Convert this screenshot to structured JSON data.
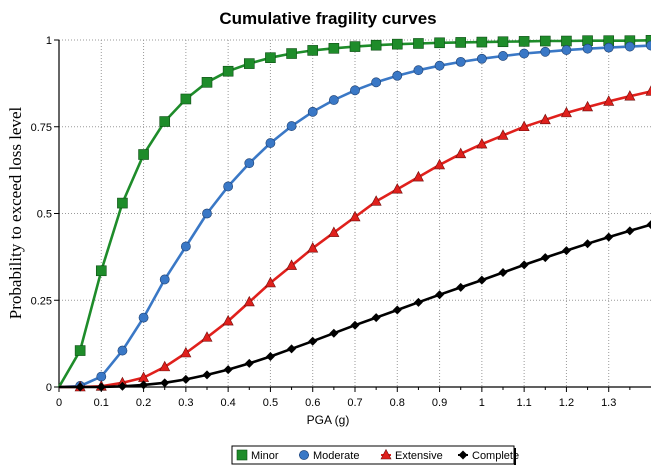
{
  "chart_data": {
    "type": "line",
    "title": "Cumulative fragility curves",
    "xlabel": "PGA (g)",
    "ylabel": "Probability to exceed loss level",
    "xlim": [
      0,
      1.4
    ],
    "ylim": [
      0,
      1
    ],
    "x_ticks": [
      "0",
      "0.1",
      "0.2",
      "0.3",
      "0.4",
      "0.5",
      "0.6",
      "0.7",
      "0.8",
      "0.9",
      "1",
      "1.1",
      "1.2",
      "1.3"
    ],
    "y_ticks": [
      "0",
      "0.25",
      "0.5",
      "0.75",
      "1"
    ],
    "grid": true,
    "legend_position": "bottom",
    "x": [
      0,
      0.05,
      0.1,
      0.15,
      0.2,
      0.25,
      0.3,
      0.35,
      0.4,
      0.45,
      0.5,
      0.55,
      0.6,
      0.65,
      0.7,
      0.75,
      0.8,
      0.85,
      0.9,
      0.95,
      1.0,
      1.05,
      1.1,
      1.15,
      1.2,
      1.25,
      1.3,
      1.35,
      1.4
    ],
    "series": [
      {
        "name": "Minor",
        "color": "#1e8c2a",
        "marker": "square",
        "values": [
          0,
          0.105,
          0.335,
          0.53,
          0.67,
          0.765,
          0.83,
          0.878,
          0.91,
          0.932,
          0.949,
          0.961,
          0.97,
          0.976,
          0.981,
          0.985,
          0.988,
          0.99,
          0.992,
          0.993,
          0.994,
          0.995,
          0.996,
          0.997,
          0.997,
          0.998,
          0.998,
          0.998,
          0.999
        ]
      },
      {
        "name": "Moderate",
        "color": "#3a78c6",
        "marker": "circle",
        "values": [
          0,
          0.003,
          0.03,
          0.105,
          0.2,
          0.31,
          0.405,
          0.5,
          0.578,
          0.645,
          0.703,
          0.752,
          0.793,
          0.827,
          0.855,
          0.878,
          0.897,
          0.913,
          0.926,
          0.937,
          0.946,
          0.954,
          0.961,
          0.966,
          0.971,
          0.975,
          0.978,
          0.981,
          0.984
        ]
      },
      {
        "name": "Extensive",
        "color": "#e0201c",
        "marker": "triangle",
        "values": [
          0,
          0,
          0.002,
          0.012,
          0.027,
          0.058,
          0.098,
          0.143,
          0.19,
          0.245,
          0.3,
          0.35,
          0.4,
          0.445,
          0.49,
          0.535,
          0.57,
          0.605,
          0.64,
          0.672,
          0.7,
          0.725,
          0.75,
          0.77,
          0.79,
          0.807,
          0.823,
          0.838,
          0.852
        ]
      },
      {
        "name": "Complete",
        "color": "#000000",
        "marker": "diamond",
        "values": [
          0,
          0,
          0,
          0.002,
          0.006,
          0.012,
          0.022,
          0.035,
          0.05,
          0.068,
          0.088,
          0.11,
          0.132,
          0.155,
          0.178,
          0.2,
          0.222,
          0.244,
          0.266,
          0.287,
          0.308,
          0.33,
          0.352,
          0.373,
          0.393,
          0.413,
          0.432,
          0.45,
          0.468
        ]
      }
    ]
  }
}
